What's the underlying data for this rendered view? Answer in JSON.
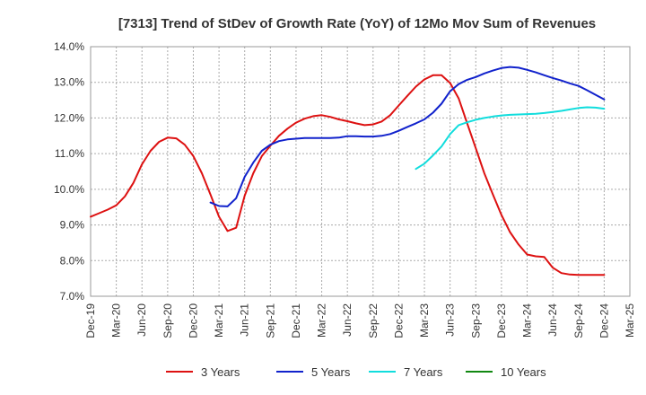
{
  "chart_data": {
    "type": "line",
    "title": "[7313]  Trend of StDev of Growth Rate (YoY) of 12Mo Mov Sum of Revenues",
    "xlabel": "",
    "ylabel": "",
    "ylim": [
      7.0,
      14.0
    ],
    "y_ticks": [
      7.0,
      8.0,
      9.0,
      10.0,
      11.0,
      12.0,
      13.0,
      14.0
    ],
    "y_tick_labels": [
      "7.0%",
      "8.0%",
      "9.0%",
      "10.0%",
      "11.0%",
      "12.0%",
      "13.0%",
      "14.0%"
    ],
    "x_range": [
      0,
      63
    ],
    "x_ticks": [
      0,
      3,
      6,
      9,
      12,
      15,
      18,
      21,
      24,
      27,
      30,
      33,
      36,
      39,
      42,
      45,
      48,
      51,
      54,
      57,
      60,
      63
    ],
    "x_tick_labels": [
      "Dec-19",
      "Mar-20",
      "Jun-20",
      "Sep-20",
      "Dec-20",
      "Mar-21",
      "Jun-21",
      "Sep-21",
      "Dec-21",
      "Mar-22",
      "Jun-22",
      "Sep-22",
      "Dec-22",
      "Mar-23",
      "Jun-23",
      "Sep-23",
      "Dec-23",
      "Mar-24",
      "Jun-24",
      "Sep-24",
      "Dec-24",
      "Mar-25"
    ],
    "grid": true,
    "legend_position": "bottom",
    "series": [
      {
        "name": "3 Years",
        "color": "#dd1111",
        "x": [
          0,
          1,
          2,
          3,
          4,
          5,
          6,
          7,
          8,
          9,
          10,
          11,
          12,
          13,
          14,
          15,
          16,
          17,
          18,
          19,
          20,
          21,
          22,
          23,
          24,
          25,
          26,
          27,
          28,
          29,
          30,
          31,
          32,
          33,
          34,
          35,
          36,
          37,
          38,
          39,
          40,
          41,
          42,
          43,
          44,
          45,
          46,
          47,
          48,
          49,
          50,
          51,
          52,
          53,
          54,
          55,
          56,
          57,
          58,
          59,
          60
        ],
        "values": [
          9.23,
          9.33,
          9.43,
          9.55,
          9.8,
          10.18,
          10.7,
          11.08,
          11.33,
          11.45,
          11.43,
          11.25,
          10.93,
          10.45,
          9.85,
          9.23,
          8.83,
          8.92,
          9.82,
          10.45,
          10.93,
          11.22,
          11.5,
          11.7,
          11.87,
          11.98,
          12.05,
          12.08,
          12.03,
          11.96,
          11.91,
          11.85,
          11.8,
          11.82,
          11.9,
          12.08,
          12.35,
          12.62,
          12.88,
          13.08,
          13.2,
          13.2,
          12.98,
          12.55,
          11.85,
          11.15,
          10.45,
          9.85,
          9.28,
          8.8,
          8.45,
          8.17,
          8.12,
          8.1,
          7.8,
          7.65,
          7.61,
          7.6,
          7.6,
          7.6,
          7.6
        ]
      },
      {
        "name": "5 Years",
        "color": "#1122cc",
        "x": [
          14,
          15,
          16,
          17,
          18,
          19,
          20,
          21,
          22,
          23,
          24,
          25,
          26,
          27,
          28,
          29,
          30,
          31,
          32,
          33,
          34,
          35,
          36,
          37,
          38,
          39,
          40,
          41,
          42,
          43,
          44,
          45,
          46,
          47,
          48,
          49,
          50,
          51,
          52,
          53,
          54,
          55,
          56,
          57,
          58,
          59,
          60
        ],
        "values": [
          9.63,
          9.53,
          9.52,
          9.75,
          10.35,
          10.75,
          11.08,
          11.25,
          11.35,
          11.4,
          11.42,
          11.44,
          11.44,
          11.44,
          11.44,
          11.45,
          11.49,
          11.49,
          11.48,
          11.48,
          11.5,
          11.55,
          11.64,
          11.75,
          11.85,
          11.96,
          12.15,
          12.4,
          12.75,
          12.95,
          13.07,
          13.15,
          13.25,
          13.33,
          13.4,
          13.43,
          13.41,
          13.35,
          13.28,
          13.2,
          13.12,
          13.05,
          12.97,
          12.9,
          12.78,
          12.65,
          12.52
        ]
      },
      {
        "name": "7 Years",
        "color": "#11dddd",
        "x": [
          38,
          39,
          40,
          41,
          42,
          43,
          44,
          45,
          46,
          47,
          48,
          49,
          50,
          51,
          52,
          53,
          54,
          55,
          56,
          57,
          58,
          59,
          60
        ],
        "values": [
          10.57,
          10.72,
          10.95,
          11.2,
          11.55,
          11.8,
          11.88,
          11.95,
          12.0,
          12.04,
          12.07,
          12.09,
          12.1,
          12.11,
          12.12,
          12.14,
          12.17,
          12.2,
          12.24,
          12.28,
          12.3,
          12.29,
          12.26
        ]
      },
      {
        "name": "10 Years",
        "color": "#118811",
        "x": [],
        "values": []
      }
    ]
  }
}
